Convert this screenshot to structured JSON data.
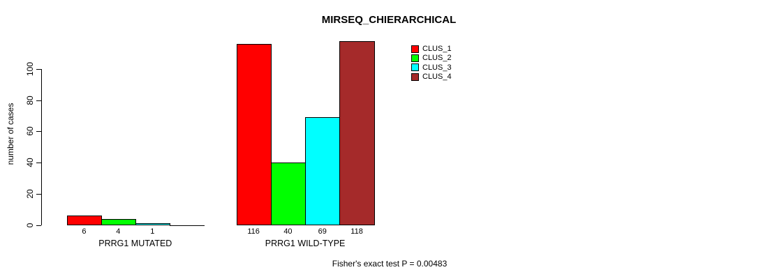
{
  "chart_data": {
    "type": "bar",
    "title": "MIRSEQ_CHIERARCHICAL",
    "ylabel": "number of cases",
    "xlabel": "",
    "ylim": [
      0,
      100
    ],
    "yticks": [
      0,
      20,
      40,
      60,
      80,
      100
    ],
    "grid": false,
    "legend_position": "top-right-inside",
    "categories": [
      "PRRG1 MUTATED",
      "PRRG1 WILD-TYPE"
    ],
    "series": [
      {
        "name": "CLUS_1",
        "color": "#ff0000",
        "values": [
          6,
          116
        ]
      },
      {
        "name": "CLUS_2",
        "color": "#00ff00",
        "values": [
          4,
          40
        ]
      },
      {
        "name": "CLUS_3",
        "color": "#00ffff",
        "values": [
          1,
          69
        ]
      },
      {
        "name": "CLUS_4",
        "color": "#a52a2a",
        "values": [
          0,
          118
        ]
      }
    ],
    "bar_value_labels": [
      [
        "6",
        "4",
        "1",
        ""
      ],
      [
        "116",
        "40",
        "69",
        "118"
      ]
    ],
    "annotation": "Fisher's exact test P = 0.00483"
  }
}
